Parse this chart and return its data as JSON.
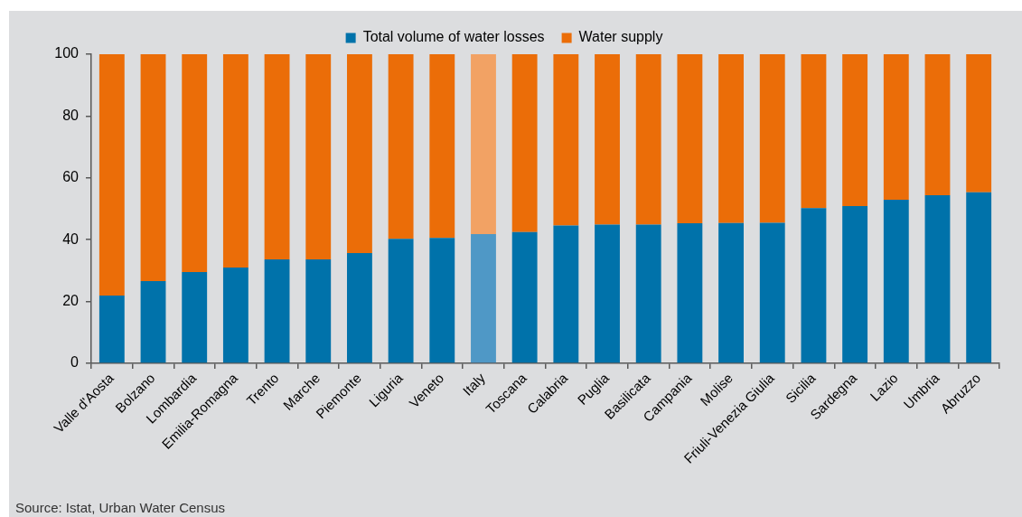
{
  "chart_data": {
    "type": "bar",
    "stacked": true,
    "categories": [
      "Valle d'Aosta",
      "Bolzano",
      "Lombardia",
      "Emilia-Romagna",
      "Trento",
      "Marche",
      "Piemonte",
      "Liguria",
      "Veneto",
      "Italy",
      "Toscana",
      "Calabria",
      "Puglia",
      "Basilicata",
      "Campania",
      "Molise",
      "Friuli-Venezia Giulia",
      "Sicilia",
      "Sardegna",
      "Lazio",
      "Umbria",
      "Abruzzo"
    ],
    "series": [
      {
        "name": "Total volume of water losses",
        "color": "#0072aa",
        "colors": [
          "#0072aa",
          "#0072aa",
          "#0072aa",
          "#0072aa",
          "#0072aa",
          "#0072aa",
          "#0072aa",
          "#0072aa",
          "#0072aa",
          "#4f98c6",
          "#0072aa",
          "#0072aa",
          "#0072aa",
          "#0072aa",
          "#0072aa",
          "#0072aa",
          "#0072aa",
          "#0072aa",
          "#0072aa",
          "#0072aa",
          "#0072aa",
          "#0072aa"
        ],
        "values": [
          21.9,
          26.6,
          29.5,
          31.0,
          33.6,
          33.6,
          35.7,
          40.3,
          40.6,
          41.8,
          42.5,
          44.6,
          44.9,
          44.9,
          45.3,
          45.4,
          45.5,
          50.2,
          50.9,
          52.9,
          54.4,
          55.3
        ]
      },
      {
        "name": "Water supply",
        "color": "#eb6d08",
        "colors": [
          "#eb6d08",
          "#eb6d08",
          "#eb6d08",
          "#eb6d08",
          "#eb6d08",
          "#eb6d08",
          "#eb6d08",
          "#eb6d08",
          "#eb6d08",
          "#f2a264",
          "#eb6d08",
          "#eb6d08",
          "#eb6d08",
          "#eb6d08",
          "#eb6d08",
          "#eb6d08",
          "#eb6d08",
          "#eb6d08",
          "#eb6d08",
          "#eb6d08",
          "#eb6d08",
          "#eb6d08"
        ],
        "values": [
          78.1,
          73.4,
          70.5,
          69.0,
          66.4,
          66.4,
          64.3,
          59.7,
          59.4,
          58.2,
          57.5,
          55.4,
          55.1,
          55.1,
          54.7,
          54.6,
          54.5,
          49.8,
          49.1,
          47.1,
          45.6,
          44.7
        ]
      }
    ],
    "ylim": [
      0,
      100
    ],
    "yticks": [
      0,
      20,
      40,
      60,
      80,
      100
    ],
    "grid": false,
    "legend": "top",
    "annotations": [
      "Source: Istat, Urban Water Census"
    ]
  }
}
